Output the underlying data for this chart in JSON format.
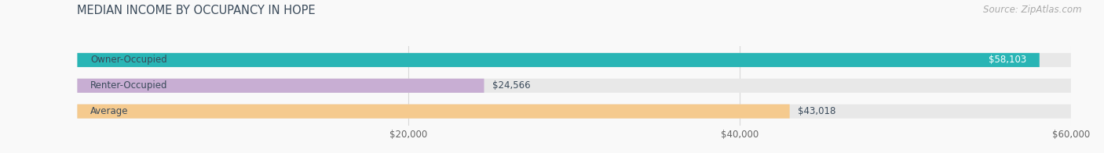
{
  "title": "MEDIAN INCOME BY OCCUPANCY IN HOPE",
  "source": "Source: ZipAtlas.com",
  "categories": [
    "Owner-Occupied",
    "Renter-Occupied",
    "Average"
  ],
  "values": [
    58103,
    24566,
    43018
  ],
  "bar_colors": [
    "#29b5b5",
    "#c8aed3",
    "#f5ca8e"
  ],
  "bar_bg_color": "#e8e8e8",
  "value_labels": [
    "$58,103",
    "$24,566",
    "$43,018"
  ],
  "value_label_inside": [
    true,
    false,
    false
  ],
  "xlim": [
    0,
    60000
  ],
  "xticks": [
    20000,
    40000,
    60000
  ],
  "xticklabels": [
    "$20,000",
    "$40,000",
    "$60,000"
  ],
  "title_color": "#3a4a5a",
  "source_color": "#aaaaaa",
  "cat_label_color": "#3a4a5a",
  "value_label_color_inside": "#ffffff",
  "value_label_color_outside": "#3a4a5a",
  "label_fontsize": 8.5,
  "value_fontsize": 8.5,
  "title_fontsize": 10.5,
  "source_fontsize": 8.5,
  "bar_height": 0.55,
  "background_color": "#f9f9f9",
  "grid_color": "#d8d8d8",
  "rounding_size": 3500
}
